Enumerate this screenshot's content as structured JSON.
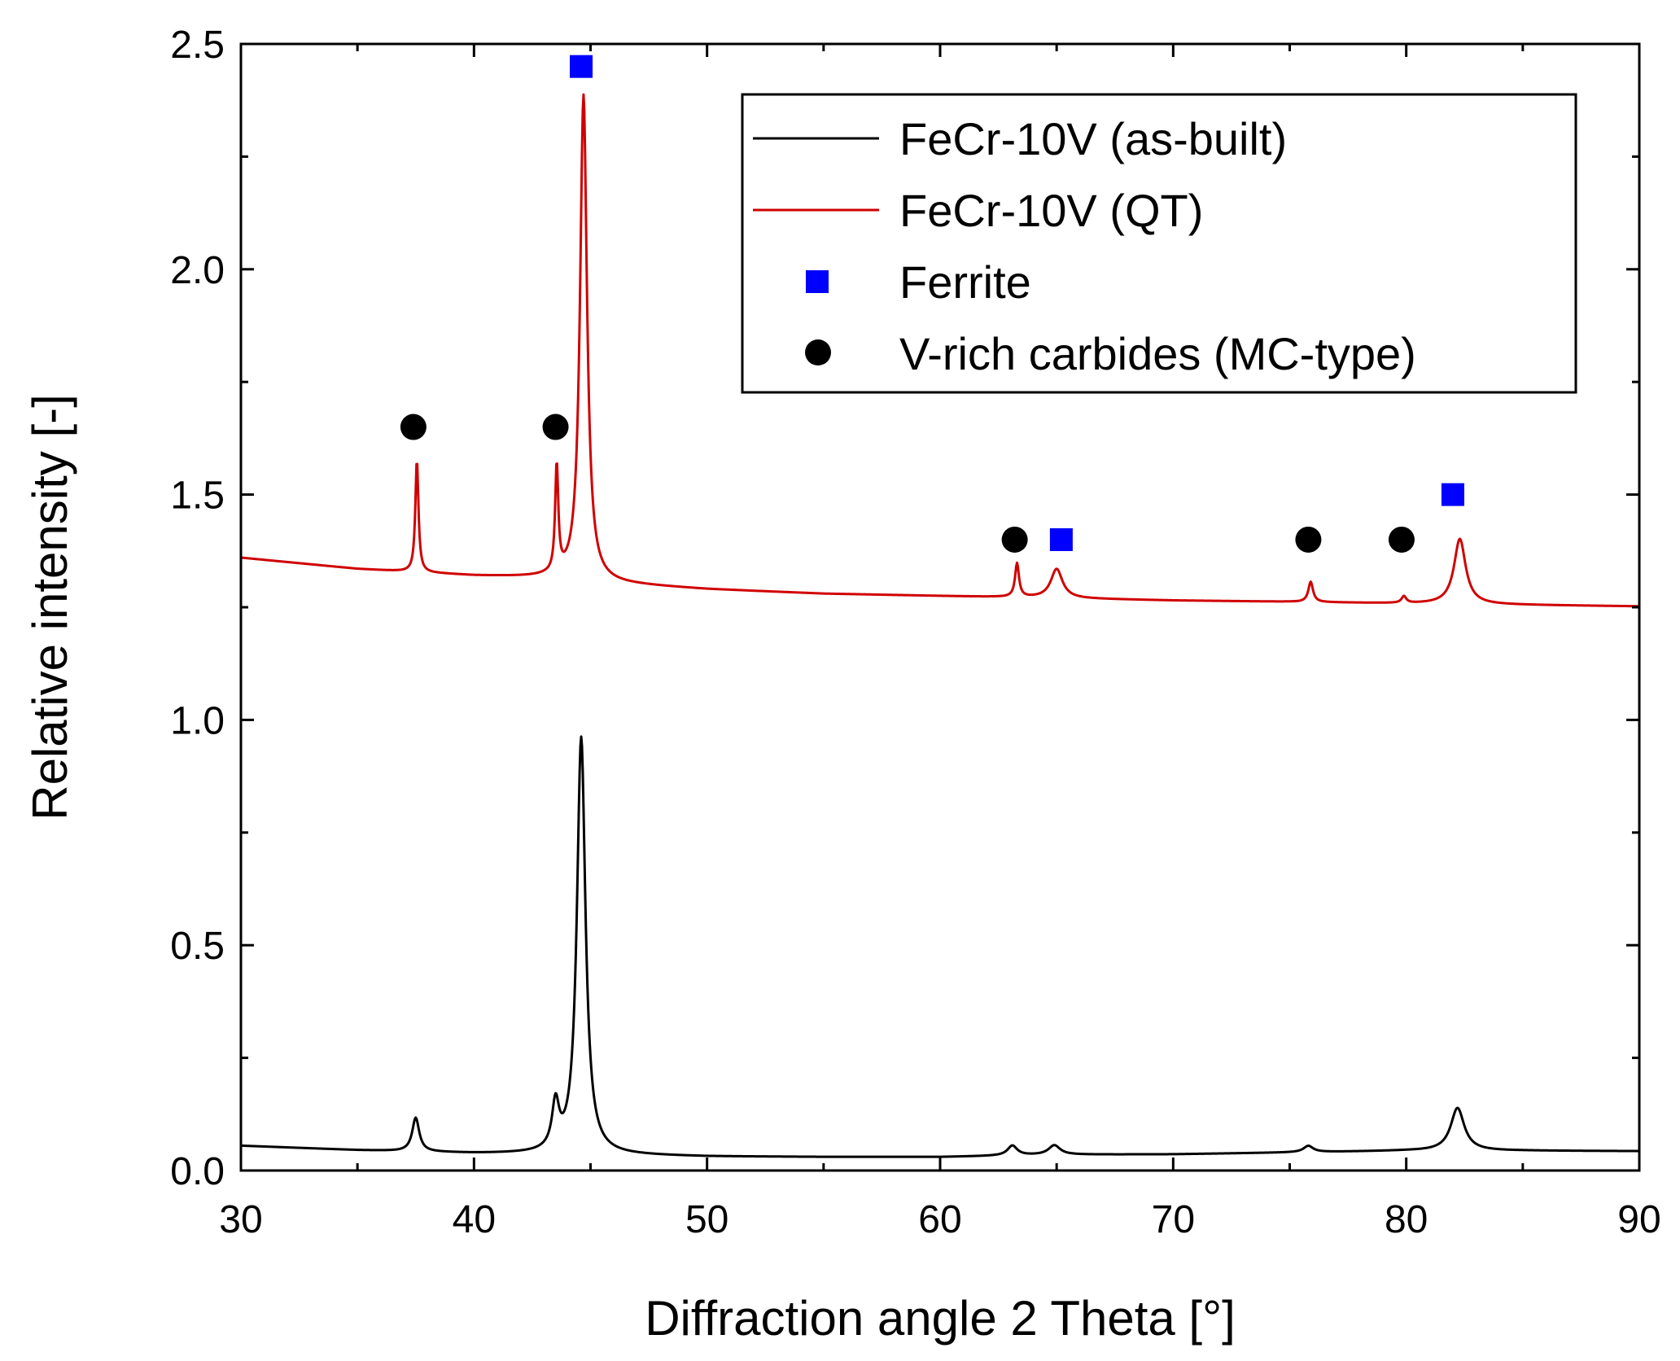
{
  "chart_data": {
    "type": "line",
    "xlabel": "Diffraction angle 2 Theta [°]",
    "ylabel": "Relative intensity [-]",
    "xlim": [
      30,
      90
    ],
    "ylim": [
      0,
      2.5
    ],
    "x_ticks": [
      30,
      40,
      50,
      60,
      70,
      80,
      90
    ],
    "x_tick_labels": [
      "30",
      "40",
      "50",
      "60",
      "70",
      "80",
      "90"
    ],
    "y_ticks": [
      0,
      0.5,
      1,
      1.5,
      2,
      2.5
    ],
    "y_tick_labels": [
      "0.0",
      "0.5",
      "1.0",
      "1.5",
      "2.0",
      "2.5"
    ],
    "grid": false,
    "legend_position": "top-right",
    "series": [
      {
        "name": "FeCr-10V (as-built)",
        "color": "#000000",
        "baseline": [
          [
            30,
            0.055
          ],
          [
            35,
            0.045
          ],
          [
            40,
            0.038
          ],
          [
            45,
            0.035
          ],
          [
            50,
            0.031
          ],
          [
            55,
            0.03
          ],
          [
            60,
            0.03
          ],
          [
            65,
            0.035
          ],
          [
            70,
            0.036
          ],
          [
            75,
            0.04
          ],
          [
            80,
            0.044
          ],
          [
            85,
            0.044
          ],
          [
            90,
            0.043
          ]
        ],
        "peaks": [
          {
            "center": 37.5,
            "height": 0.075,
            "width": 0.18
          },
          {
            "center": 43.5,
            "height": 0.1,
            "width": 0.18
          },
          {
            "center": 44.6,
            "height": 0.925,
            "width": 0.22
          },
          {
            "center": 63.1,
            "height": 0.022,
            "width": 0.25
          },
          {
            "center": 64.9,
            "height": 0.021,
            "width": 0.3
          },
          {
            "center": 75.8,
            "height": 0.014,
            "width": 0.25
          },
          {
            "center": 82.2,
            "height": 0.095,
            "width": 0.35
          }
        ]
      },
      {
        "name": "FeCr-10V (QT)",
        "color": "#d00000",
        "baseline": [
          [
            30,
            1.36
          ],
          [
            35,
            1.335
          ],
          [
            40,
            1.32
          ],
          [
            43,
            1.315
          ],
          [
            45,
            1.305
          ],
          [
            50,
            1.29
          ],
          [
            55,
            1.28
          ],
          [
            60,
            1.275
          ],
          [
            65,
            1.27
          ],
          [
            70,
            1.265
          ],
          [
            75,
            1.262
          ],
          [
            80,
            1.258
          ],
          [
            85,
            1.255
          ],
          [
            90,
            1.252
          ]
        ],
        "peaks": [
          {
            "center": 37.55,
            "height": 0.25,
            "width": 0.08
          },
          {
            "center": 43.55,
            "height": 0.24,
            "width": 0.08
          },
          {
            "center": 44.7,
            "height": 1.08,
            "width": 0.18
          },
          {
            "center": 63.3,
            "height": 0.075,
            "width": 0.1
          },
          {
            "center": 65.0,
            "height": 0.065,
            "width": 0.3
          },
          {
            "center": 75.9,
            "height": 0.045,
            "width": 0.12
          },
          {
            "center": 79.9,
            "height": 0.015,
            "width": 0.12
          },
          {
            "center": 82.3,
            "height": 0.145,
            "width": 0.3
          }
        ]
      }
    ],
    "markers": {
      "ferrite": {
        "label": "Ferrite",
        "shape": "square",
        "color": "#0000ff",
        "points": [
          [
            44.6,
            2.45
          ],
          [
            65.2,
            1.4
          ],
          [
            82.0,
            1.5
          ]
        ]
      },
      "carbide": {
        "label": "V-rich carbides (MC-type)",
        "shape": "circle",
        "color": "#000000",
        "points": [
          [
            37.4,
            1.65
          ],
          [
            43.5,
            1.65
          ],
          [
            63.2,
            1.4
          ],
          [
            75.8,
            1.4
          ],
          [
            79.8,
            1.4
          ]
        ]
      }
    }
  }
}
